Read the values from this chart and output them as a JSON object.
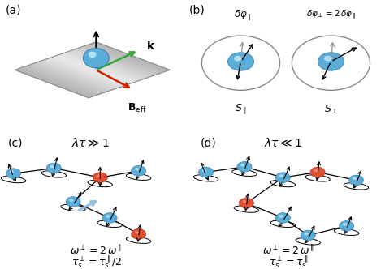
{
  "sphere_color_blue": "#5bacd6",
  "sphere_color_red": "#e05030",
  "arrow_color_green": "#33aa33",
  "arrow_color_red": "#cc2200",
  "background": "#ffffff",
  "panel_c_eq1": "$\\omega^{\\perp} = 2\\omega^{\\parallel}$",
  "panel_c_eq2": "$\\tau_s^{\\perp} = \\tau_s^{\\parallel}/2$",
  "panel_d_eq1": "$\\omega^{\\perp} = 2\\omega^{\\parallel}$",
  "panel_d_eq2": "$\\tau_s^{\\perp} = \\tau_s^{\\parallel}$"
}
